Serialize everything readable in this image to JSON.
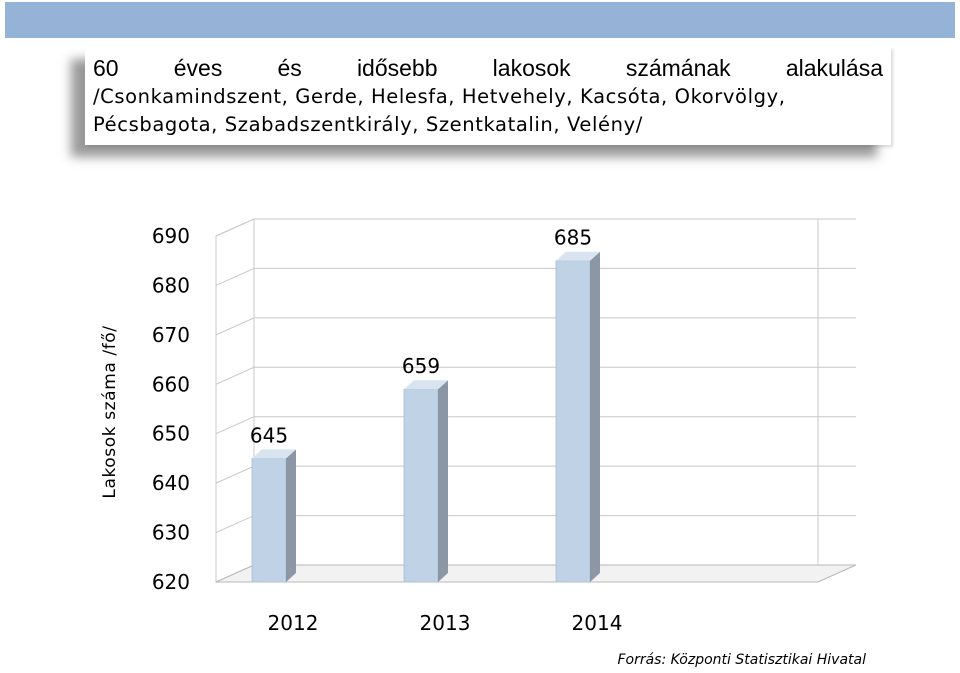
{
  "title": {
    "line1": "60 éves és idősebb lakosok számának alakulása",
    "line2": "/Csonkamindszent, Gerde, Helesfa, Hetvehely, Kacsóta, Okorvölgy,",
    "line3": "Pécsbagota, Szabadszentkirály, Szentkatalin, Velény/"
  },
  "source": "Forrás: Központi Statisztikai Hivatal",
  "colors": {
    "header_band": "#95b3d7",
    "bar_front": "#bfd2e6",
    "bar_side": "#8b97a4",
    "bar_top": "#d8e4f0"
  },
  "chart_data": {
    "type": "bar",
    "categories": [
      "2012",
      "2013",
      "2014"
    ],
    "values": [
      645,
      659,
      685
    ],
    "data_labels": [
      "645",
      "659",
      "685"
    ],
    "title": "60 éves és idősebb lakosok számának alakulása",
    "xlabel": "",
    "ylabel": "Lakosok száma /fő/",
    "ylim": [
      620,
      690
    ],
    "yticks": [
      "690",
      "680",
      "670",
      "660",
      "650",
      "640",
      "630",
      "620"
    ],
    "grid": true,
    "legend": "none",
    "style": "3d-column"
  }
}
